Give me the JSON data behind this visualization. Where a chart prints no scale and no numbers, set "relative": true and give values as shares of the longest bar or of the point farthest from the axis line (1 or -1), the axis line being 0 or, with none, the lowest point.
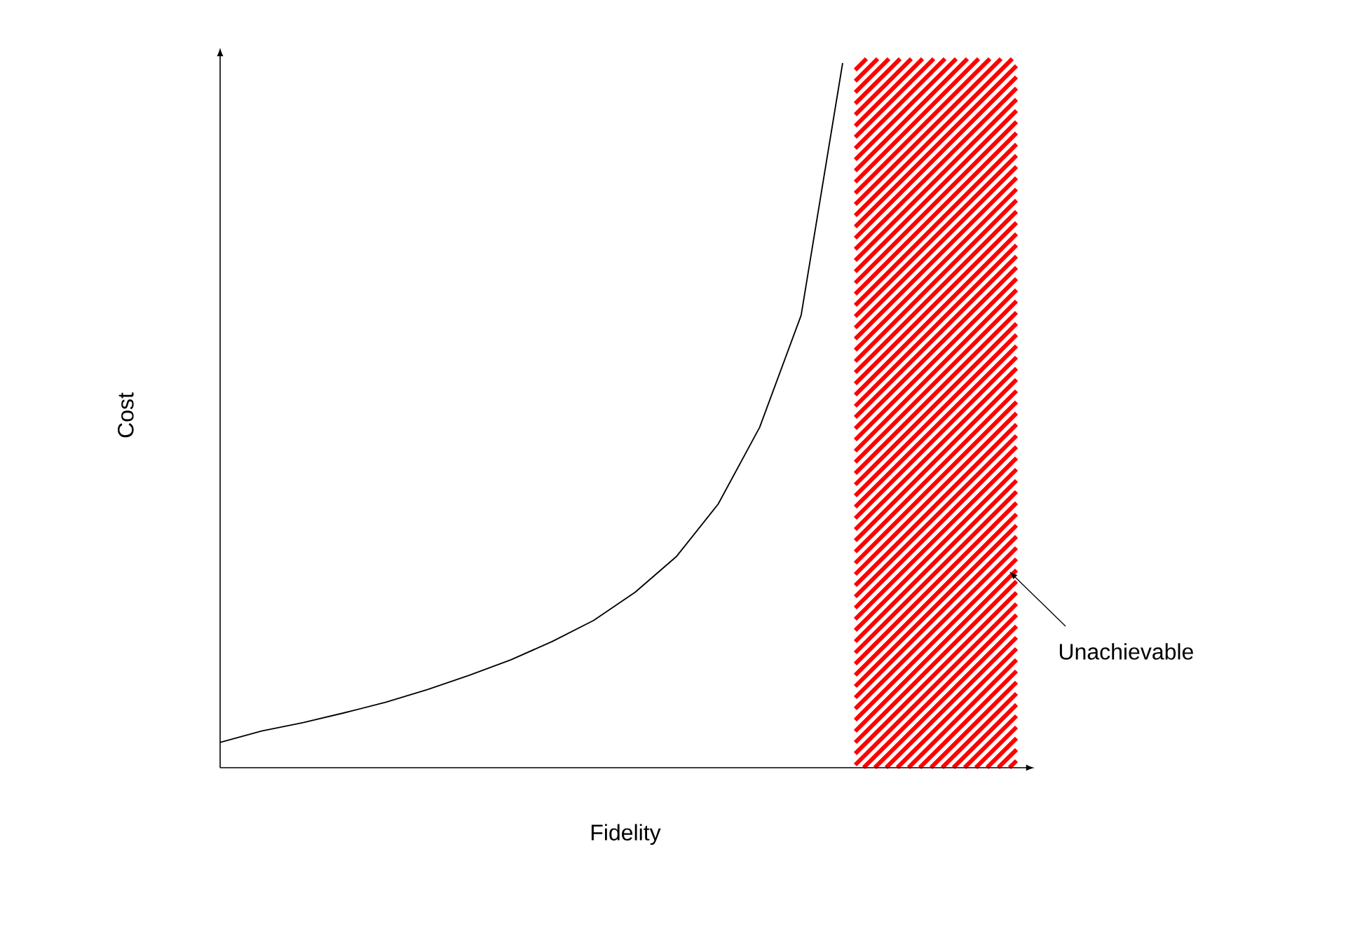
{
  "chart_data": {
    "type": "line",
    "relative": true,
    "xlabel": "Fidelity",
    "ylabel": "Cost",
    "categories": [
      null,
      null,
      null,
      null,
      null,
      null,
      null,
      null,
      null,
      null,
      null,
      null,
      null,
      null,
      null,
      null
    ],
    "series": [
      {
        "color": "#000000",
        "values": [
          0.036,
          0.052,
          0.064,
          0.078,
          0.093,
          0.111,
          0.131,
          0.153,
          0.179,
          0.209,
          0.249,
          0.3,
          0.374,
          0.483,
          0.642,
          1.0
        ]
      }
    ],
    "annotations": [
      "Unachievable"
    ],
    "marker": "none",
    "line_style": "solid"
  }
}
